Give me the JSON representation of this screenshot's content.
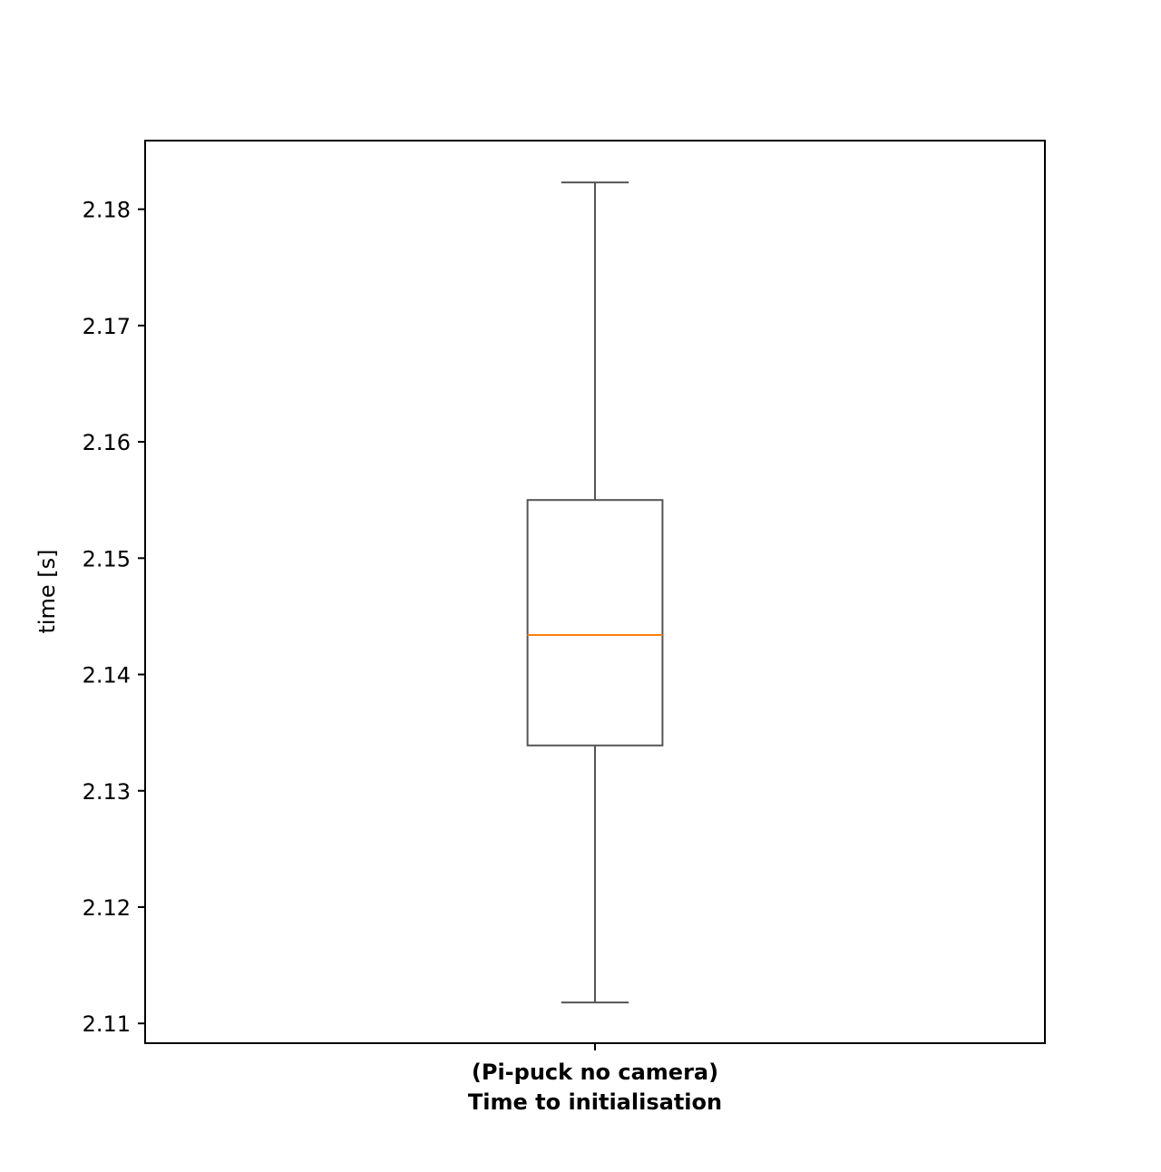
{
  "chart_data": {
    "type": "box",
    "title": "",
    "xlabel": "",
    "ylabel": "time [s]",
    "categories": [
      [
        "(Pi-puck no camera)",
        "Time to initialisation"
      ]
    ],
    "ylim": [
      2.1083,
      2.1859
    ],
    "yticks": [
      "2.11",
      "2.12",
      "2.13",
      "2.14",
      "2.15",
      "2.16",
      "2.17",
      "2.18"
    ],
    "ytick_values": [
      2.11,
      2.12,
      2.13,
      2.14,
      2.15,
      2.16,
      2.17,
      2.18
    ],
    "boxes": [
      {
        "whisker_low": 2.1118,
        "q1": 2.1339,
        "median": 2.1434,
        "q3": 2.155,
        "whisker_high": 2.1823
      }
    ],
    "grid": false,
    "colors": {
      "box": "#555555",
      "median": "#ff7f0e",
      "axes": "#000000"
    }
  }
}
